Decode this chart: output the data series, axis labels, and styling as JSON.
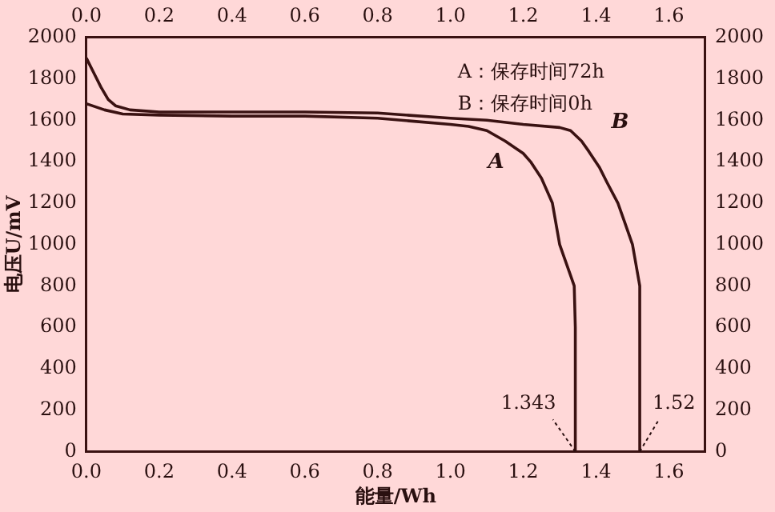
{
  "chart_data": {
    "type": "line",
    "xlabel": "能量/Wh",
    "ylabel": "电压U/mV",
    "series": [
      {
        "name": "A",
        "color": "#3a1212",
        "x": [
          0,
          0.05,
          0.1,
          0.2,
          0.4,
          0.6,
          0.8,
          0.9,
          1.0,
          1.05,
          1.1,
          1.15,
          1.2,
          1.22,
          1.25,
          1.28,
          1.3,
          1.31,
          1.33,
          1.34,
          1.343,
          1.343
        ],
        "values": [
          1680,
          1650,
          1630,
          1625,
          1620,
          1620,
          1610,
          1595,
          1580,
          1570,
          1550,
          1500,
          1440,
          1400,
          1320,
          1200,
          1000,
          950,
          850,
          800,
          600,
          0
        ]
      },
      {
        "name": "B",
        "color": "#3a1212",
        "x": [
          0,
          0.02,
          0.04,
          0.06,
          0.08,
          0.12,
          0.2,
          0.4,
          0.6,
          0.8,
          1.0,
          1.1,
          1.2,
          1.3,
          1.33,
          1.36,
          1.38,
          1.41,
          1.43,
          1.46,
          1.48,
          1.5,
          1.51,
          1.52,
          1.52
        ],
        "values": [
          1900,
          1830,
          1760,
          1700,
          1670,
          1650,
          1640,
          1640,
          1640,
          1635,
          1610,
          1600,
          1580,
          1565,
          1550,
          1500,
          1450,
          1370,
          1300,
          1200,
          1100,
          1000,
          900,
          800,
          0
        ]
      }
    ],
    "xlim": [
      0,
      1.7
    ],
    "xticks": [
      {
        "value": 0,
        "label": "0.0"
      },
      {
        "value": 0.2,
        "label": "0.2"
      },
      {
        "value": 0.4,
        "label": "0.4"
      },
      {
        "value": 0.6,
        "label": "0.6"
      },
      {
        "value": 0.8,
        "label": "0.8"
      },
      {
        "value": 1,
        "label": "1.0"
      },
      {
        "value": 1.2,
        "label": "1.2"
      },
      {
        "value": 1.4,
        "label": "1.4"
      },
      {
        "value": 1.6,
        "label": "1.6"
      }
    ],
    "x2lim": [
      0,
      1.7
    ],
    "x2ticks": [
      {
        "value": 0,
        "label": "0.0"
      },
      {
        "value": 0.2,
        "label": "0.2"
      },
      {
        "value": 0.4,
        "label": "0.4"
      },
      {
        "value": 0.6,
        "label": "0.6"
      },
      {
        "value": 0.8,
        "label": "0.8"
      },
      {
        "value": 1,
        "label": "1.0"
      },
      {
        "value": 1.2,
        "label": "1.2"
      },
      {
        "value": 1.4,
        "label": "1.4"
      },
      {
        "value": 1.6,
        "label": "1.6"
      }
    ],
    "ylim": [
      0,
      2000
    ],
    "yticks": [
      0,
      200,
      400,
      600,
      800,
      1000,
      1200,
      1400,
      1600,
      1800,
      2000
    ],
    "y2lim": [
      0,
      2000
    ],
    "y2ticks": [
      0,
      200,
      400,
      600,
      800,
      1000,
      1200,
      1400,
      1600,
      1800,
      2000
    ],
    "annotations": [
      "A：保存时间72h",
      "B：保存时间0h",
      {
        "text": "1.343",
        "x": 1.343,
        "y": 0
      },
      {
        "text": "1.52",
        "x": 1.52,
        "y": 0
      }
    ],
    "grid": false,
    "legend": false,
    "marker": "none",
    "line_style": "solid"
  }
}
